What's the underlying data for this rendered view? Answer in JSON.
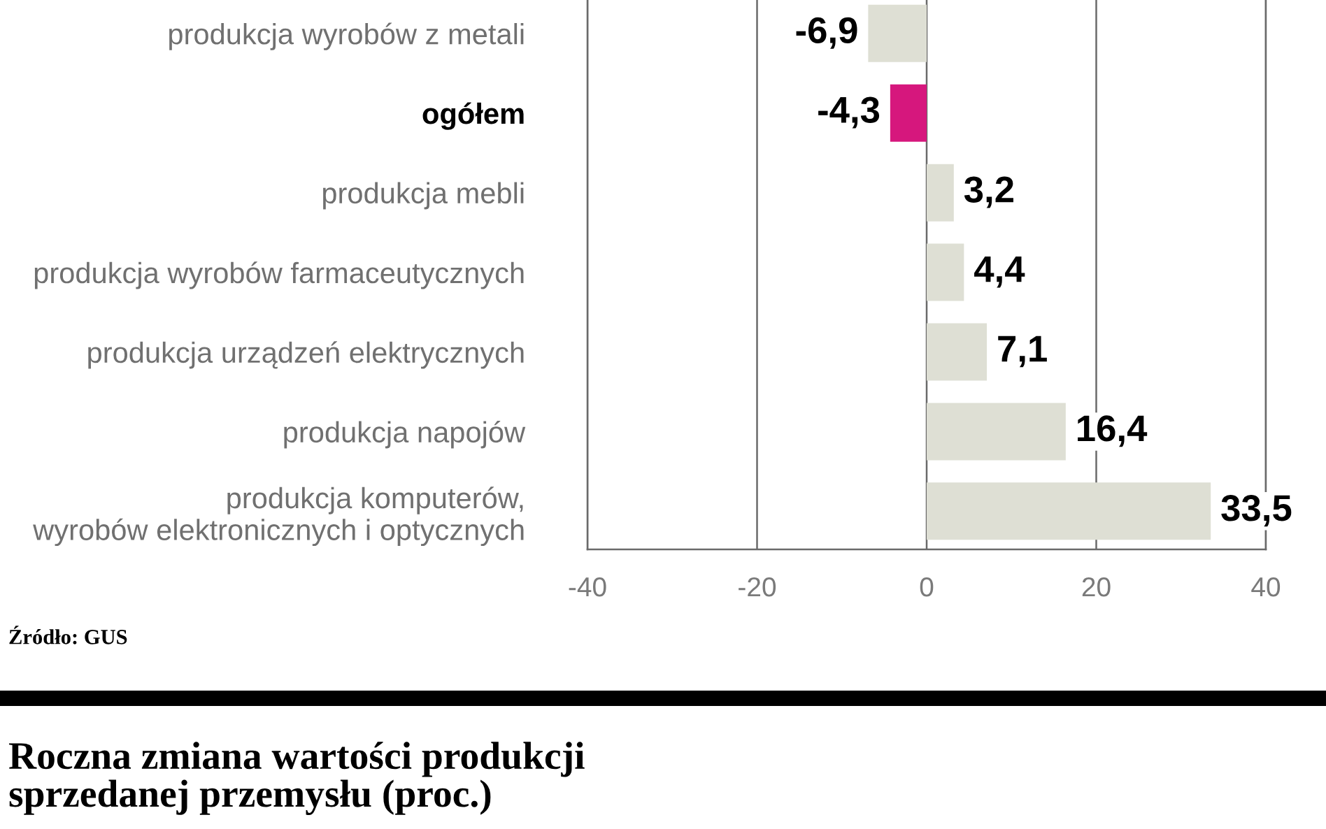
{
  "chart_data": {
    "type": "bar",
    "orientation": "horizontal",
    "title": "Roczna zmiana wartości produkcji\nsprzedanej przemysłu (proc.)",
    "categories": [
      "produkcja wyrobów z metali",
      "ogółem",
      "produkcja mebli",
      "produkcja wyrobów farmaceutycznych",
      "produkcja urządzeń elektrycznych",
      "produkcja napojów",
      "produkcja komputerów,\nwyrobów elektronicznych i optycznych"
    ],
    "values": [
      -6.9,
      -4.3,
      3.2,
      4.4,
      7.1,
      16.4,
      33.5
    ],
    "colors": [
      "#dedfd4",
      "#d6177d",
      "#dedfd4",
      "#dedfd4",
      "#dedfd4",
      "#dedfd4",
      "#dedfd4"
    ],
    "value_labels": [
      "-6,9",
      "-4,3",
      "3,2",
      "4,4",
      "7,1",
      "16,4",
      "33,5"
    ],
    "xlim": [
      -40,
      40
    ],
    "xticks": [
      -40,
      -20,
      0,
      20,
      40
    ],
    "grid": "x",
    "annotations": [
      "Źródło: GUS"
    ]
  }
}
